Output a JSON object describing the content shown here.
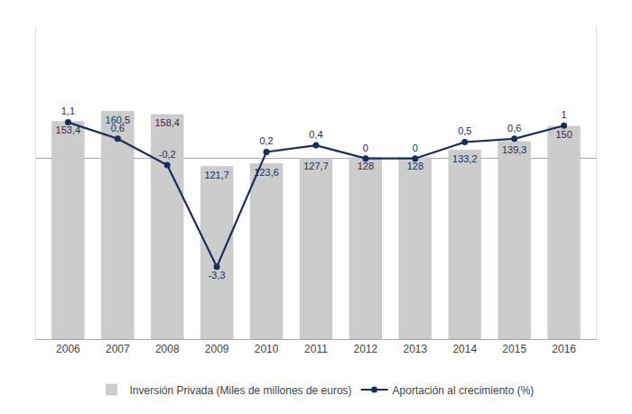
{
  "chart_data": {
    "type": "bar",
    "categories": [
      "2006",
      "2007",
      "2008",
      "2009",
      "2010",
      "2011",
      "2012",
      "2013",
      "2014",
      "2015",
      "2016"
    ],
    "series": [
      {
        "name": "Inversión Privada (Miles de millones de euros)",
        "type": "bar",
        "color": "#cccccc",
        "values": [
          153.4,
          160.5,
          158.4,
          121.7,
          123.6,
          127.7,
          128,
          128,
          133.2,
          139.3,
          150
        ],
        "value_labels": [
          "153,4",
          "160,5",
          "158,4",
          "121,7",
          "123,6",
          "127,7",
          "128",
          "128",
          "133,2",
          "139,3",
          "150"
        ]
      },
      {
        "name": "Aportación al crecimiento (%)",
        "type": "line",
        "axis": "y2",
        "color": "#1a2e5a",
        "marker": "circle",
        "values": [
          1.1,
          0.6,
          -0.2,
          -3.3,
          0.2,
          0.4,
          0,
          0,
          0.5,
          0.6,
          1
        ],
        "value_labels": [
          "1,1",
          "0,6",
          "-0,2",
          "-3,3",
          "0,2",
          "0,4",
          "0",
          "0",
          "0,5",
          "0,6",
          "1"
        ]
      }
    ],
    "ylim": [
      0,
      220
    ],
    "y2lim": [
      -5.5,
      4.0
    ],
    "data_labels": true,
    "tick_labels": "x",
    "grid": false,
    "legend": "bottom"
  }
}
